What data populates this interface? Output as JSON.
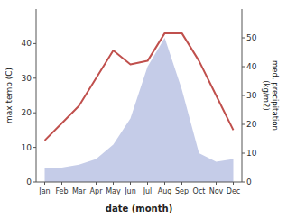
{
  "chart_data": {
    "type": "line",
    "x_label": "date (month)",
    "y_label": "max temp (C)",
    "y2_label": "med. precipitation\n(kg/m2)",
    "categories": [
      "Jan",
      "Feb",
      "Mar",
      "Apr",
      "May",
      "Jun",
      "Jul",
      "Aug",
      "Sep",
      "Oct",
      "Nov",
      "Dec"
    ],
    "series": [
      {
        "type": "area",
        "axis": "y2",
        "color": "#c5cce8",
        "values": [
          5,
          5,
          6,
          8,
          13,
          22,
          40,
          50,
          32,
          10,
          7,
          8
        ]
      },
      {
        "type": "line",
        "color": "#c0504d",
        "values": [
          12,
          17,
          22,
          30,
          38,
          34,
          35,
          43,
          43,
          35,
          25,
          15
        ]
      }
    ],
    "ylim": [
      0,
      50
    ],
    "yticks": [
      0,
      10,
      20,
      30,
      40
    ],
    "y2lim": [
      0,
      60
    ],
    "y2ticks": [
      0,
      10,
      20,
      30,
      40,
      50
    ],
    "grid": false
  }
}
